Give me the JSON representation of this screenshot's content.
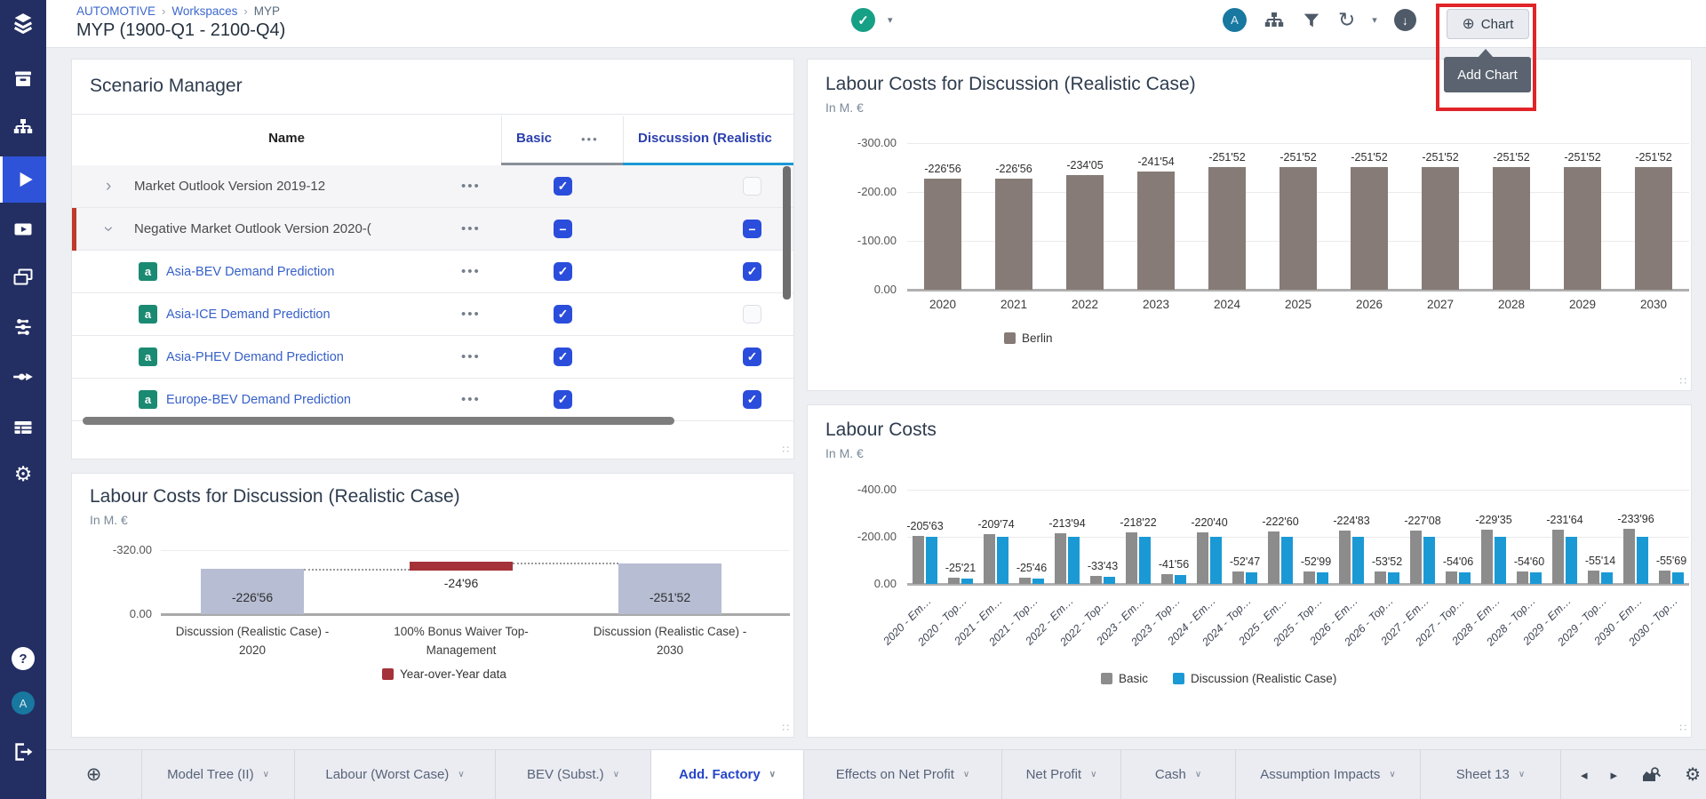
{
  "header": {
    "breadcrumb": [
      "AUTOMOTIVE",
      "Workspaces",
      "MYP"
    ],
    "title": "MYP (1900-Q1 - 2100-Q4)",
    "status_check": "✓",
    "avatar_letter": "A",
    "chart_button_label": "Chart",
    "tooltip_label": "Add Chart",
    "scenario_manager_button": "Scenario Manager",
    "highlight_color": "#e02428",
    "icons": [
      "check-circle-icon",
      "hierarchy-icon",
      "filter-icon",
      "refresh-icon",
      "download-icon"
    ]
  },
  "sidebar": {
    "items": [
      "logo",
      "archive",
      "model-hierarchy",
      "play",
      "video",
      "slides",
      "network",
      "flow",
      "table",
      "settings"
    ],
    "active_item": "play",
    "bottom_items": [
      "help",
      "avatar",
      "logout"
    ],
    "avatar_letter": "A",
    "colors": {
      "background": "#232e62",
      "active": "#2e53d8"
    }
  },
  "scenario_panel": {
    "title": "Scenario Manager",
    "columns": {
      "name": "Name",
      "basic": "Basic",
      "basic_menu": "•••",
      "discussion": "Discussion (Realistic"
    },
    "column_underline_colors": {
      "basic": "#8a8f98",
      "discussion": "#1b99d5"
    },
    "rows": [
      {
        "name": "Market Outlook Version 2019-12",
        "type": "parent",
        "expanded": false,
        "menu": "•••",
        "basic": "checked",
        "discussion": "unchecked"
      },
      {
        "name": "Negative Market Outlook Version 2020-(",
        "type": "parent",
        "expanded": true,
        "menu": "•••",
        "basic": "indeterminate",
        "discussion": "indeterminate"
      },
      {
        "name": "Asia-BEV Demand Prediction",
        "type": "child",
        "badge": "a",
        "menu": "•••",
        "basic": "checked",
        "discussion": "checked"
      },
      {
        "name": "Asia-ICE Demand Prediction",
        "type": "child",
        "badge": "a",
        "menu": "•••",
        "basic": "checked",
        "discussion": "unchecked"
      },
      {
        "name": "Asia-PHEV Demand Prediction",
        "type": "child",
        "badge": "a",
        "menu": "•••",
        "basic": "checked",
        "discussion": "checked"
      },
      {
        "name": "Europe-BEV Demand Prediction",
        "type": "child",
        "badge": "a",
        "menu": "•••",
        "basic": "checked",
        "discussion": "checked"
      }
    ]
  },
  "chart_data": [
    {
      "id": "chartA",
      "type": "bar",
      "title": "Labour Costs for Discussion (Realistic Case)",
      "subtitle": "In M. €",
      "categories": [
        "2020",
        "2021",
        "2022",
        "2023",
        "2024",
        "2025",
        "2026",
        "2027",
        "2028",
        "2029",
        "2030"
      ],
      "series": [
        {
          "name": "Berlin",
          "color": "#867b76",
          "values": [
            -226.56,
            -226.56,
            -234.05,
            -241.54,
            -251.52,
            -251.52,
            -251.52,
            -251.52,
            -251.52,
            -251.52,
            -251.52
          ],
          "labels": [
            "-226'56",
            "-226'56",
            "-234'05",
            "-241'54",
            "-251'52",
            "-251'52",
            "-251'52",
            "-251'52",
            "-251'52",
            "-251'52",
            "-251'52"
          ]
        }
      ],
      "yticks": [
        "-300.00",
        "-200.00",
        "-100.00",
        "0.00"
      ],
      "ymin": -300,
      "ymax": 0,
      "grid": true,
      "legend_position": "bottom"
    },
    {
      "id": "chartB",
      "type": "waterfall",
      "title": "Labour Costs for Discussion (Realistic Case)",
      "subtitle": "In M. €",
      "bars": [
        {
          "category_lines": [
            "Discussion (Realistic Case) -",
            "2020"
          ],
          "value": -226.56,
          "label": "-226'56",
          "kind": "total"
        },
        {
          "category_lines": [
            "100% Bonus Waiver Top-",
            "Management"
          ],
          "value": -24.96,
          "label": "-24'96",
          "kind": "delta",
          "from": -226.56,
          "to": -251.52
        },
        {
          "category_lines": [
            "Discussion (Realistic Case) -",
            "2030"
          ],
          "value": -251.52,
          "label": "-251'52",
          "kind": "total"
        }
      ],
      "yticks": [
        "-320.00",
        "0.00"
      ],
      "ymin": -320,
      "ymax": 0,
      "grid": true,
      "colors": {
        "total": "#b7bdd3",
        "delta": "#a53238"
      },
      "legend": [
        {
          "name": "Year-over-Year data",
          "color": "#a53238"
        }
      ],
      "legend_position": "bottom"
    },
    {
      "id": "chartC",
      "type": "bar",
      "title": "Labour Costs",
      "subtitle": "In M. €",
      "categories": [
        "2020 - Em…",
        "2020 - Top…",
        "2021 - Em…",
        "2021 - Top…",
        "2022 - Em…",
        "2022 - Top…",
        "2023 - Em…",
        "2023 - Top…",
        "2024 - Em…",
        "2024 - Top…",
        "2025 - Em…",
        "2025 - Top…",
        "2026 - Em…",
        "2026 - Top…",
        "2027 - Em…",
        "2027 - Top…",
        "2028 - Em…",
        "2028 - Top…",
        "2029 - Em…",
        "2029 - Top…",
        "2030 - Em…",
        "2030 - Top…"
      ],
      "series": [
        {
          "name": "Basic",
          "color": "#8c8c8c",
          "values": [
            -205.63,
            -25.21,
            -209.74,
            -25.46,
            -213.94,
            -33.43,
            -218.22,
            -41.56,
            -220.4,
            -52.47,
            -222.6,
            -52.99,
            -224.83,
            -53.52,
            -227.08,
            -54.06,
            -229.35,
            -54.6,
            -231.64,
            -55.14,
            -233.96,
            -55.69
          ],
          "labels": [
            "-205'63",
            "-25'21",
            "-209'74",
            "-25'46",
            "-213'94",
            "-33'43",
            "-218'22",
            "-41'56",
            "-220'40",
            "-52'47",
            "-222'60",
            "-52'99",
            "-224'83",
            "-53'52",
            "-227'08",
            "-54'06",
            "-229'35",
            "-54'60",
            "-231'64",
            "-55'14",
            "-233'96",
            "-55'69"
          ]
        },
        {
          "name": "Discussion (Realistic Case)",
          "color": "#1b99d5",
          "values": [
            -200.0,
            -22.9,
            -200.0,
            -23.1,
            -200.0,
            -30.4,
            -200.0,
            -37.8,
            -200.0,
            -47.7,
            -200.0,
            -48.2,
            -200.0,
            -48.6,
            -200.0,
            -49.1,
            -200.0,
            -49.6,
            -200.0,
            -50.1,
            -200.0,
            -50.6
          ]
        }
      ],
      "yticks": [
        "-400.00",
        "-200.00",
        "0.00"
      ],
      "ymin": -400,
      "ymax": 0,
      "grid": true,
      "legend_position": "bottom",
      "xtick_style": "rotated-italic"
    }
  ],
  "tabbar": {
    "add_icon": "⊕",
    "tabs": [
      {
        "label": "Model Tree (II)",
        "active": false
      },
      {
        "label": "Labour (Worst Case)",
        "active": false
      },
      {
        "label": "BEV (Subst.)",
        "active": false
      },
      {
        "label": "Add. Factory",
        "active": true
      },
      {
        "label": "Effects on Net Profit",
        "active": false
      },
      {
        "label": "Net Profit",
        "active": false
      },
      {
        "label": "Cash",
        "active": false
      },
      {
        "label": "Assumption Impacts",
        "active": false
      },
      {
        "label": "Sheet 13",
        "active": false
      }
    ],
    "nav_icons": [
      "prev-sheet",
      "next-sheet",
      "sheet-search",
      "sheet-settings"
    ]
  }
}
